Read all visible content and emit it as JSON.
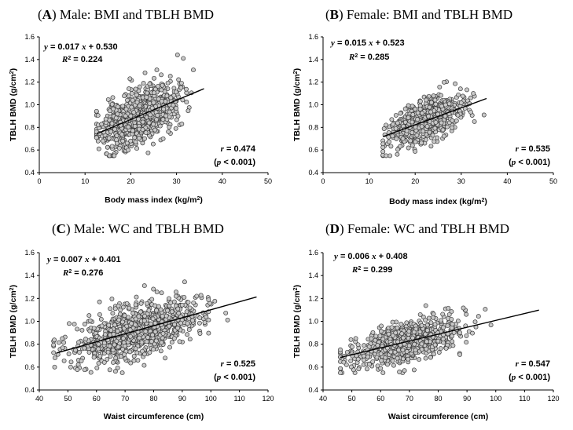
{
  "chart_data": [
    {
      "type": "scatter",
      "panel_letter": "A",
      "title": "Male: BMI and TBLH BMD",
      "xlabel": "Body mass index (kg/m²)",
      "ylabel": "TBLH BMD (g/cm²)",
      "xlim": [
        0,
        50
      ],
      "xticks": [
        "0",
        "10",
        "20",
        "30",
        "40",
        "50"
      ],
      "ylim": [
        0.4,
        1.6
      ],
      "yticks": [
        "0.4",
        "0.6",
        "0.8",
        "1.0",
        "1.2",
        "1.4",
        "1.6"
      ],
      "equation": "y = 0.017 x + 0.530",
      "slope": 0.017,
      "intercept": 0.53,
      "r2_label": "R² = 0.224",
      "r_label": "r = 0.474",
      "p_label": "(p < 0.001)",
      "fit_x": [
        12.6,
        36.0
      ],
      "x_dist": [
        21.5,
        4.2,
        12.5,
        37.0
      ],
      "y_noise": 0.115,
      "n": 900
    },
    {
      "type": "scatter",
      "panel_letter": "B",
      "title": "Female: BMI and TBLH BMD",
      "xlabel": "Body mass index (kg/m²)",
      "ylabel": "TBLH BMD (g/cm²)",
      "xlim": [
        0,
        50
      ],
      "xticks": [
        "0",
        "10",
        "20",
        "30",
        "40",
        "50"
      ],
      "ylim": [
        0.4,
        1.6
      ],
      "yticks": [
        "0.4",
        "0.6",
        "0.8",
        "1.0",
        "1.2",
        "1.4",
        "1.6"
      ],
      "equation": "y = 0.015 x + 0.523",
      "slope": 0.015,
      "intercept": 0.523,
      "r2_label": "R² = 0.285",
      "r_label": "r = 0.535",
      "p_label": "(p < 0.001)",
      "fit_x": [
        13.0,
        35.5
      ],
      "x_dist": [
        22.0,
        3.8,
        13.0,
        35.5
      ],
      "y_noise": 0.085,
      "n": 700
    },
    {
      "type": "scatter",
      "panel_letter": "C",
      "title": "Male: WC and TBLH BMD",
      "xlabel": "Waist circumference (cm)",
      "ylabel": "TBLH BMD (g/cm²)",
      "xlim": [
        40,
        120
      ],
      "xticks": [
        "40",
        "50",
        "60",
        "70",
        "80",
        "90",
        "100",
        "110",
        "120"
      ],
      "ylim": [
        0.4,
        1.6
      ],
      "yticks": [
        "0.4",
        "0.6",
        "0.8",
        "1.0",
        "1.2",
        "1.4",
        "1.6"
      ],
      "equation": "y = 0.007 x + 0.401",
      "slope": 0.007,
      "intercept": 0.401,
      "r2_label": "R² = 0.276",
      "r_label": "r = 0.525",
      "p_label": "(p < 0.001)",
      "fit_x": [
        46.0,
        116.0
      ],
      "x_dist": [
        74.0,
        11.0,
        45.0,
        116.0
      ],
      "y_noise": 0.11,
      "n": 950
    },
    {
      "type": "scatter",
      "panel_letter": "D",
      "title": "Female: WC and TBLH BMD",
      "xlabel": "Waist circumference (cm)",
      "ylabel": "TBLH BMD (g/cm²)",
      "xlim": [
        40,
        120
      ],
      "xticks": [
        "40",
        "50",
        "60",
        "70",
        "80",
        "90",
        "100",
        "110",
        "120"
      ],
      "ylim": [
        0.4,
        1.6
      ],
      "yticks": [
        "0.4",
        "0.6",
        "0.8",
        "1.0",
        "1.2",
        "1.4",
        "1.6"
      ],
      "equation": "y = 0.006 x + 0.408",
      "slope": 0.006,
      "intercept": 0.408,
      "r2_label": "R² = 0.299",
      "r_label": "r = 0.547",
      "p_label": "(p < 0.001)",
      "fit_x": [
        46.0,
        115.0
      ],
      "x_dist": [
        69.0,
        9.0,
        46.0,
        115.0
      ],
      "y_noise": 0.085,
      "n": 750
    }
  ]
}
